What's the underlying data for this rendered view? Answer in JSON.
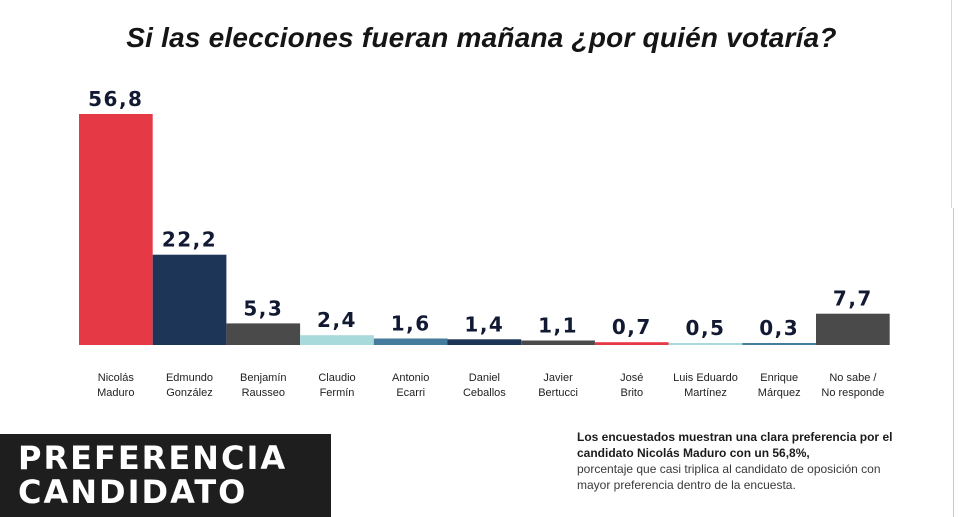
{
  "title": "Si las elecciones fueran mañana ¿por quién votaría?",
  "badge": {
    "line1": "PREFERENCIA",
    "line2": "CANDIDATO"
  },
  "note": {
    "strong": "Los encuestados muestran una clara preferencia por el candidato Nicolás Maduro con un 56,8%,",
    "normal": "porcentaje que casi triplica al candidato de oposición con mayor preferencia dentro de la encuesta."
  },
  "chart_data": {
    "type": "bar",
    "title": "Si las elecciones fueran mañana ¿por quién votaría?",
    "categories": [
      [
        "Nicolás",
        "Maduro"
      ],
      [
        "Edmundo",
        "González"
      ],
      [
        "Benjamín",
        "Rausseo"
      ],
      [
        "Claudio",
        "Fermín"
      ],
      [
        "Antonio",
        "Ecarri"
      ],
      [
        "Daniel",
        "Ceballos"
      ],
      [
        "Javier",
        "Bertucci"
      ],
      [
        "José",
        "Brito"
      ],
      [
        "Luis Eduardo",
        "Martínez"
      ],
      [
        "Enrique",
        "Márquez"
      ],
      [
        "No sabe /",
        "No responde"
      ]
    ],
    "values": [
      56.8,
      22.2,
      5.3,
      2.4,
      1.6,
      1.4,
      1.1,
      0.7,
      0.5,
      0.3,
      7.7
    ],
    "value_labels": [
      "56,8",
      "22,2",
      "5,3",
      "2,4",
      "1,6",
      "1,4",
      "1,1",
      "0,7",
      "0,5",
      "0,3",
      "7,7"
    ],
    "colors": [
      "#e63946",
      "#1d3557",
      "#4a4a4a",
      "#a8dadc",
      "#457b9d",
      "#1d3557",
      "#4a4a4a",
      "#e63946",
      "#a8dadc",
      "#457b9d",
      "#4a4a4a"
    ],
    "xlabel": "",
    "ylabel": "",
    "ylim": [
      0,
      56.8
    ],
    "grid": false,
    "legend": "none"
  }
}
